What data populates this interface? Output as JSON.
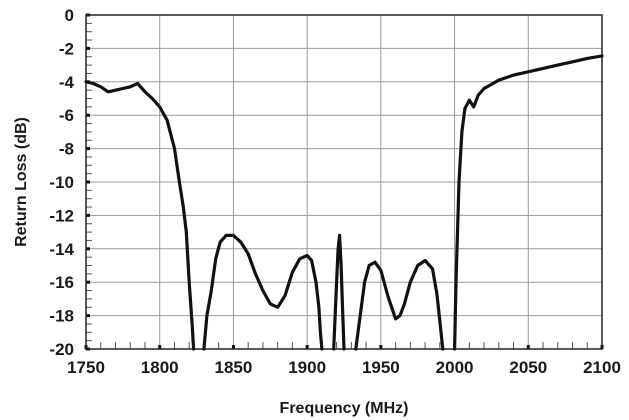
{
  "chart_data": {
    "type": "line",
    "title": "",
    "xlabel": "Frequency (MHz)",
    "ylabel": "Return Loss (dB)",
    "xlim": [
      1750,
      2100
    ],
    "ylim": [
      -20,
      0
    ],
    "x_ticks": [
      "1750",
      "1800",
      "1850",
      "1900",
      "1950",
      "2000",
      "2050",
      "2100"
    ],
    "y_ticks": [
      "0",
      "-2",
      "-4",
      "-6",
      "-8",
      "-10",
      "-12",
      "-14",
      "-16",
      "-18",
      "-20"
    ],
    "grid": true,
    "series": [
      {
        "segments": [
          {
            "x": [
              1750,
              1755,
              1760,
              1765,
              1770,
              1775,
              1780,
              1785,
              1790,
              1795,
              1800,
              1805,
              1810,
              1813,
              1816,
              1818,
              1820,
              1822,
              1823
            ],
            "y": [
              -4.0,
              -4.1,
              -4.3,
              -4.6,
              -4.5,
              -4.4,
              -4.3,
              -4.1,
              -4.6,
              -5.0,
              -5.5,
              -6.3,
              -8.0,
              -9.8,
              -11.5,
              -13.0,
              -16.0,
              -18.5,
              -20.0
            ]
          },
          {
            "x": [
              1830,
              1832,
              1835,
              1838,
              1841,
              1845,
              1850,
              1855,
              1860,
              1865,
              1870,
              1875,
              1880,
              1885,
              1890,
              1895,
              1900,
              1903,
              1906,
              1908,
              1909,
              1910
            ],
            "y": [
              -20.0,
              -18.0,
              -16.5,
              -14.6,
              -13.6,
              -13.2,
              -13.2,
              -13.6,
              -14.3,
              -15.5,
              -16.5,
              -17.3,
              -17.5,
              -16.8,
              -15.4,
              -14.6,
              -14.4,
              -14.7,
              -16.0,
              -17.5,
              -19.0,
              -20.0
            ]
          },
          {
            "x": [
              1918,
              1920,
              1921,
              1922,
              1923,
              1924,
              1925
            ],
            "y": [
              -20.0,
              -16.0,
              -14.0,
              -13.2,
              -15.0,
              -17.5,
              -20.0
            ]
          },
          {
            "x": [
              1933,
              1936,
              1939,
              1942,
              1946,
              1950,
              1955,
              1960,
              1963,
              1966,
              1970,
              1975,
              1980,
              1985,
              1988,
              1990,
              1992
            ],
            "y": [
              -20.0,
              -18.0,
              -16.0,
              -15.0,
              -14.8,
              -15.3,
              -16.9,
              -18.2,
              -18.0,
              -17.3,
              -16.0,
              -15.0,
              -14.7,
              -15.2,
              -16.7,
              -18.3,
              -20.0
            ]
          },
          {
            "x": [
              2000,
              2001,
              2003,
              2005,
              2007,
              2010,
              2013,
              2016,
              2020,
              2030,
              2040,
              2050,
              2060,
              2070,
              2080,
              2090,
              2100
            ],
            "y": [
              -20.0,
              -16.0,
              -10.0,
              -7.0,
              -5.6,
              -5.1,
              -5.5,
              -4.8,
              -4.4,
              -3.9,
              -3.6,
              -3.4,
              -3.2,
              -3.0,
              -2.8,
              -2.6,
              -2.45
            ]
          }
        ]
      }
    ]
  },
  "style": {
    "line_color": "#111111",
    "grid_color": "#9a9a9a",
    "background": "#ffffff"
  }
}
